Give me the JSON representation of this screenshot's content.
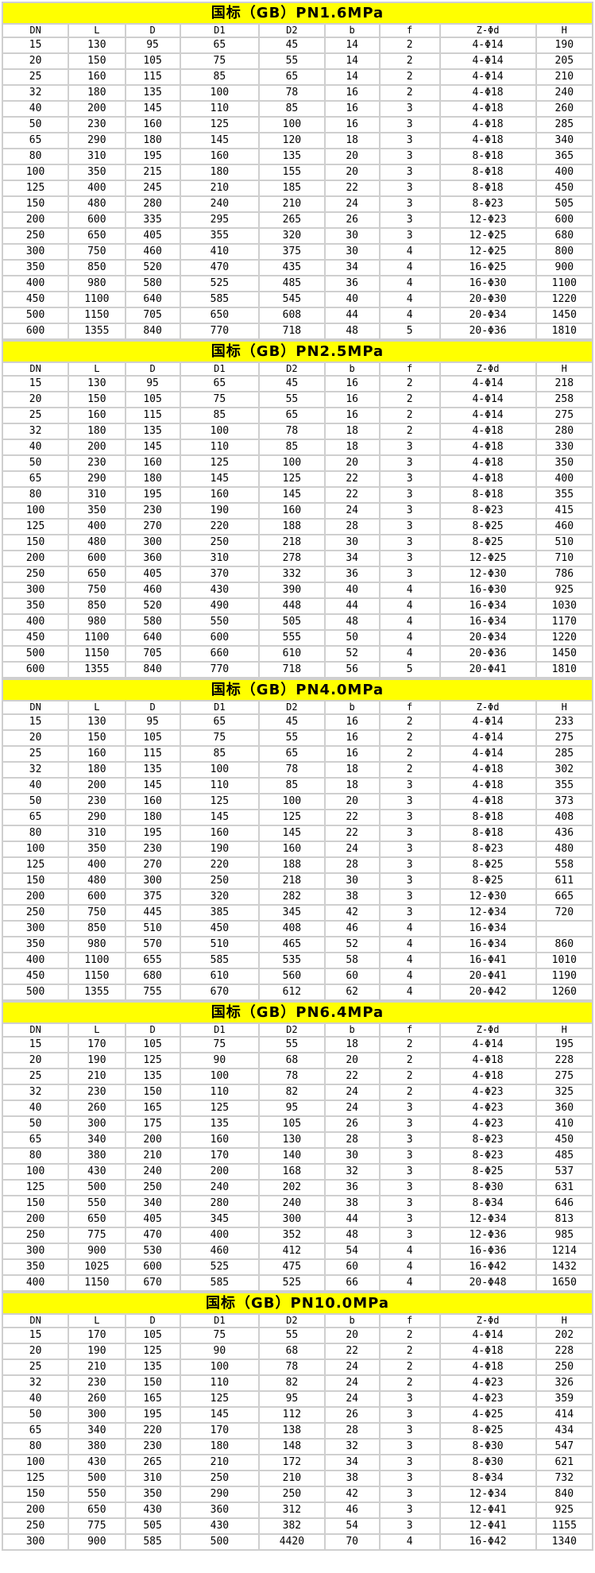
{
  "colors": {
    "section_header_bg": "#ffff00",
    "grid_line": "#cfcfcf",
    "cell_bg": "#ffffff",
    "text": "#000000"
  },
  "columns": [
    "DN",
    "L",
    "D",
    "D1",
    "D2",
    "b",
    "f",
    "Z-Φd",
    "H"
  ],
  "sections": [
    {
      "title": "国标（GB）PN1.6MPa",
      "rows": [
        [
          "15",
          "130",
          "95",
          "65",
          "45",
          "14",
          "2",
          "4-Φ14",
          "190"
        ],
        [
          "20",
          "150",
          "105",
          "75",
          "55",
          "14",
          "2",
          "4-Φ14",
          "205"
        ],
        [
          "25",
          "160",
          "115",
          "85",
          "65",
          "14",
          "2",
          "4-Φ14",
          "210"
        ],
        [
          "32",
          "180",
          "135",
          "100",
          "78",
          "16",
          "2",
          "4-Φ18",
          "240"
        ],
        [
          "40",
          "200",
          "145",
          "110",
          "85",
          "16",
          "3",
          "4-Φ18",
          "260"
        ],
        [
          "50",
          "230",
          "160",
          "125",
          "100",
          "16",
          "3",
          "4-Φ18",
          "285"
        ],
        [
          "65",
          "290",
          "180",
          "145",
          "120",
          "18",
          "3",
          "4-Φ18",
          "340"
        ],
        [
          "80",
          "310",
          "195",
          "160",
          "135",
          "20",
          "3",
          "8-Φ18",
          "365"
        ],
        [
          "100",
          "350",
          "215",
          "180",
          "155",
          "20",
          "3",
          "8-Φ18",
          "400"
        ],
        [
          "125",
          "400",
          "245",
          "210",
          "185",
          "22",
          "3",
          "8-Φ18",
          "450"
        ],
        [
          "150",
          "480",
          "280",
          "240",
          "210",
          "24",
          "3",
          "8-Φ23",
          "505"
        ],
        [
          "200",
          "600",
          "335",
          "295",
          "265",
          "26",
          "3",
          "12-Φ23",
          "600"
        ],
        [
          "250",
          "650",
          "405",
          "355",
          "320",
          "30",
          "3",
          "12-Φ25",
          "680"
        ],
        [
          "300",
          "750",
          "460",
          "410",
          "375",
          "30",
          "4",
          "12-Φ25",
          "800"
        ],
        [
          "350",
          "850",
          "520",
          "470",
          "435",
          "34",
          "4",
          "16-Φ25",
          "900"
        ],
        [
          "400",
          "980",
          "580",
          "525",
          "485",
          "36",
          "4",
          "16-Φ30",
          "1100"
        ],
        [
          "450",
          "1100",
          "640",
          "585",
          "545",
          "40",
          "4",
          "20-Φ30",
          "1220"
        ],
        [
          "500",
          "1150",
          "705",
          "650",
          "608",
          "44",
          "4",
          "20-Φ34",
          "1450"
        ],
        [
          "600",
          "1355",
          "840",
          "770",
          "718",
          "48",
          "5",
          "20-Φ36",
          "1810"
        ]
      ]
    },
    {
      "title": "国标（GB）PN2.5MPa",
      "rows": [
        [
          "15",
          "130",
          "95",
          "65",
          "45",
          "16",
          "2",
          "4-Φ14",
          "218"
        ],
        [
          "20",
          "150",
          "105",
          "75",
          "55",
          "16",
          "2",
          "4-Φ14",
          "258"
        ],
        [
          "25",
          "160",
          "115",
          "85",
          "65",
          "16",
          "2",
          "4-Φ14",
          "275"
        ],
        [
          "32",
          "180",
          "135",
          "100",
          "78",
          "18",
          "2",
          "4-Φ18",
          "280"
        ],
        [
          "40",
          "200",
          "145",
          "110",
          "85",
          "18",
          "3",
          "4-Φ18",
          "330"
        ],
        [
          "50",
          "230",
          "160",
          "125",
          "100",
          "20",
          "3",
          "4-Φ18",
          "350"
        ],
        [
          "65",
          "290",
          "180",
          "145",
          "125",
          "22",
          "3",
          "4-Φ18",
          "400"
        ],
        [
          "80",
          "310",
          "195",
          "160",
          "145",
          "22",
          "3",
          "8-Φ18",
          "355"
        ],
        [
          "100",
          "350",
          "230",
          "190",
          "160",
          "24",
          "3",
          "8-Φ23",
          "415"
        ],
        [
          "125",
          "400",
          "270",
          "220",
          "188",
          "28",
          "3",
          "8-Φ25",
          "460"
        ],
        [
          "150",
          "480",
          "300",
          "250",
          "218",
          "30",
          "3",
          "8-Φ25",
          "510"
        ],
        [
          "200",
          "600",
          "360",
          "310",
          "278",
          "34",
          "3",
          "12-Φ25",
          "710"
        ],
        [
          "250",
          "650",
          "405",
          "370",
          "332",
          "36",
          "3",
          "12-Φ30",
          "786"
        ],
        [
          "300",
          "750",
          "460",
          "430",
          "390",
          "40",
          "4",
          "16-Φ30",
          "925"
        ],
        [
          "350",
          "850",
          "520",
          "490",
          "448",
          "44",
          "4",
          "16-Φ34",
          "1030"
        ],
        [
          "400",
          "980",
          "580",
          "550",
          "505",
          "48",
          "4",
          "16-Φ34",
          "1170"
        ],
        [
          "450",
          "1100",
          "640",
          "600",
          "555",
          "50",
          "4",
          "20-Φ34",
          "1220"
        ],
        [
          "500",
          "1150",
          "705",
          "660",
          "610",
          "52",
          "4",
          "20-Φ36",
          "1450"
        ],
        [
          "600",
          "1355",
          "840",
          "770",
          "718",
          "56",
          "5",
          "20-Φ41",
          "1810"
        ]
      ]
    },
    {
      "title": "国标（GB）PN4.0MPa",
      "rows": [
        [
          "15",
          "130",
          "95",
          "65",
          "45",
          "16",
          "2",
          "4-Φ14",
          "233"
        ],
        [
          "20",
          "150",
          "105",
          "75",
          "55",
          "16",
          "2",
          "4-Φ14",
          "275"
        ],
        [
          "25",
          "160",
          "115",
          "85",
          "65",
          "16",
          "2",
          "4-Φ14",
          "285"
        ],
        [
          "32",
          "180",
          "135",
          "100",
          "78",
          "18",
          "2",
          "4-Φ18",
          "302"
        ],
        [
          "40",
          "200",
          "145",
          "110",
          "85",
          "18",
          "3",
          "4-Φ18",
          "355"
        ],
        [
          "50",
          "230",
          "160",
          "125",
          "100",
          "20",
          "3",
          "4-Φ18",
          "373"
        ],
        [
          "65",
          "290",
          "180",
          "145",
          "125",
          "22",
          "3",
          "8-Φ18",
          "408"
        ],
        [
          "80",
          "310",
          "195",
          "160",
          "145",
          "22",
          "3",
          "8-Φ18",
          "436"
        ],
        [
          "100",
          "350",
          "230",
          "190",
          "160",
          "24",
          "3",
          "8-Φ23",
          "480"
        ],
        [
          "125",
          "400",
          "270",
          "220",
          "188",
          "28",
          "3",
          "8-Φ25",
          "558"
        ],
        [
          "150",
          "480",
          "300",
          "250",
          "218",
          "30",
          "3",
          "8-Φ25",
          "611"
        ],
        [
          "200",
          "600",
          "375",
          "320",
          "282",
          "38",
          "3",
          "12-Φ30",
          "665"
        ],
        [
          "250",
          "750",
          "445",
          "385",
          "345",
          "42",
          "3",
          "12-Φ34",
          "720"
        ],
        [
          "300",
          "850",
          "510",
          "450",
          "408",
          "46",
          "4",
          "16-Φ34",
          ""
        ],
        [
          "350",
          "980",
          "570",
          "510",
          "465",
          "52",
          "4",
          "16-Φ34",
          "860"
        ],
        [
          "400",
          "1100",
          "655",
          "585",
          "535",
          "58",
          "4",
          "16-Φ41",
          "1010"
        ],
        [
          "450",
          "1150",
          "680",
          "610",
          "560",
          "60",
          "4",
          "20-Φ41",
          "1190"
        ],
        [
          "500",
          "1355",
          "755",
          "670",
          "612",
          "62",
          "4",
          "20-Φ42",
          "1260"
        ]
      ]
    },
    {
      "title": "国标（GB）PN6.4MPa",
      "rows": [
        [
          "15",
          "170",
          "105",
          "75",
          "55",
          "18",
          "2",
          "4-Φ14",
          "195"
        ],
        [
          "20",
          "190",
          "125",
          "90",
          "68",
          "20",
          "2",
          "4-Φ18",
          "228"
        ],
        [
          "25",
          "210",
          "135",
          "100",
          "78",
          "22",
          "2",
          "4-Φ18",
          "275"
        ],
        [
          "32",
          "230",
          "150",
          "110",
          "82",
          "24",
          "2",
          "4-Φ23",
          "325"
        ],
        [
          "40",
          "260",
          "165",
          "125",
          "95",
          "24",
          "3",
          "4-Φ23",
          "360"
        ],
        [
          "50",
          "300",
          "175",
          "135",
          "105",
          "26",
          "3",
          "4-Φ23",
          "410"
        ],
        [
          "65",
          "340",
          "200",
          "160",
          "130",
          "28",
          "3",
          "8-Φ23",
          "450"
        ],
        [
          "80",
          "380",
          "210",
          "170",
          "140",
          "30",
          "3",
          "8-Φ23",
          "485"
        ],
        [
          "100",
          "430",
          "240",
          "200",
          "168",
          "32",
          "3",
          "8-Φ25",
          "537"
        ],
        [
          "125",
          "500",
          "250",
          "240",
          "202",
          "36",
          "3",
          "8-Φ30",
          "631"
        ],
        [
          "150",
          "550",
          "340",
          "280",
          "240",
          "38",
          "3",
          "8-Φ34",
          "646"
        ],
        [
          "200",
          "650",
          "405",
          "345",
          "300",
          "44",
          "3",
          "12-Φ34",
          "813"
        ],
        [
          "250",
          "775",
          "470",
          "400",
          "352",
          "48",
          "3",
          "12-Φ36",
          "985"
        ],
        [
          "300",
          "900",
          "530",
          "460",
          "412",
          "54",
          "4",
          "16-Φ36",
          "1214"
        ],
        [
          "350",
          "1025",
          "600",
          "525",
          "475",
          "60",
          "4",
          "16-Φ42",
          "1432"
        ],
        [
          "400",
          "1150",
          "670",
          "585",
          "525",
          "66",
          "4",
          "20-Φ48",
          "1650"
        ]
      ]
    },
    {
      "title": "国标（GB）PN10.0MPa",
      "rows": [
        [
          "15",
          "170",
          "105",
          "75",
          "55",
          "20",
          "2",
          "4-Φ14",
          "202"
        ],
        [
          "20",
          "190",
          "125",
          "90",
          "68",
          "22",
          "2",
          "4-Φ18",
          "228"
        ],
        [
          "25",
          "210",
          "135",
          "100",
          "78",
          "24",
          "2",
          "4-Φ18",
          "250"
        ],
        [
          "32",
          "230",
          "150",
          "110",
          "82",
          "24",
          "2",
          "4-Φ23",
          "326"
        ],
        [
          "40",
          "260",
          "165",
          "125",
          "95",
          "24",
          "3",
          "4-Φ23",
          "359"
        ],
        [
          "50",
          "300",
          "195",
          "145",
          "112",
          "26",
          "3",
          "4-Φ25",
          "414"
        ],
        [
          "65",
          "340",
          "220",
          "170",
          "138",
          "28",
          "3",
          "8-Φ25",
          "434"
        ],
        [
          "80",
          "380",
          "230",
          "180",
          "148",
          "32",
          "3",
          "8-Φ30",
          "547"
        ],
        [
          "100",
          "430",
          "265",
          "210",
          "172",
          "34",
          "3",
          "8-Φ30",
          "621"
        ],
        [
          "125",
          "500",
          "310",
          "250",
          "210",
          "38",
          "3",
          "8-Φ34",
          "732"
        ],
        [
          "150",
          "550",
          "350",
          "290",
          "250",
          "42",
          "3",
          "12-Φ34",
          "840"
        ],
        [
          "200",
          "650",
          "430",
          "360",
          "312",
          "46",
          "3",
          "12-Φ41",
          "925"
        ],
        [
          "250",
          "775",
          "505",
          "430",
          "382",
          "54",
          "3",
          "12-Φ41",
          "1155"
        ],
        [
          "300",
          "900",
          "585",
          "500",
          "4420",
          "70",
          "4",
          "16-Φ42",
          "1340"
        ]
      ]
    }
  ]
}
